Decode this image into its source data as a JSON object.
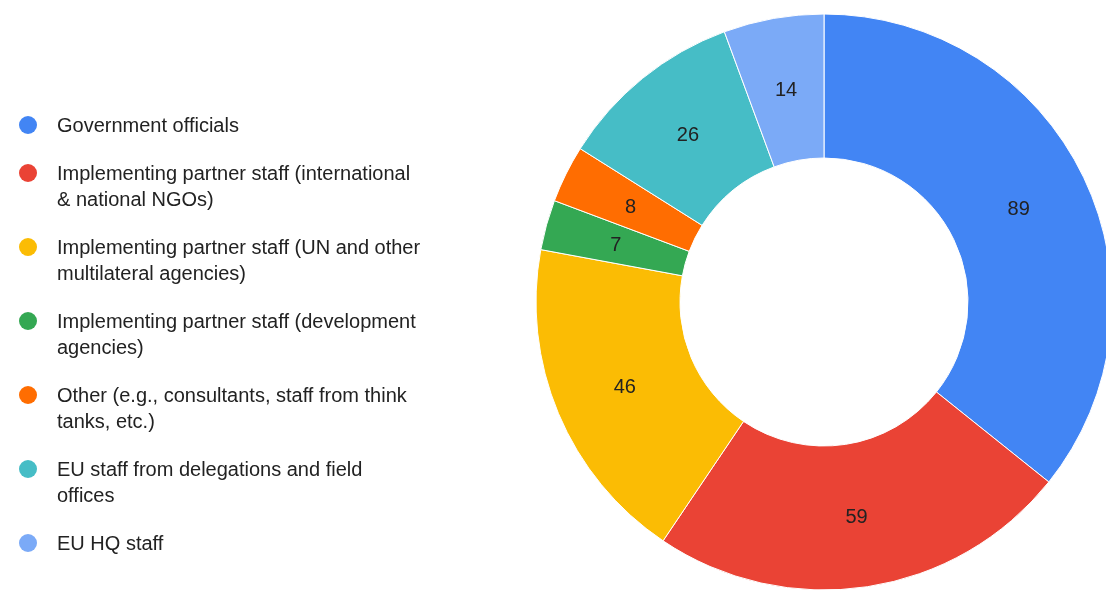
{
  "chart_data": {
    "type": "donut",
    "categories": [
      "Government officials",
      "Implementing partner staff (international & national NGOs)",
      "Implementing partner staff (UN and other multilateral agencies)",
      "Implementing partner staff (development agencies)",
      "Other (e.g., consultants, staff from think tanks, etc.)",
      "EU staff from delegations and field offices",
      "EU HQ staff"
    ],
    "values": [
      89,
      59,
      46,
      7,
      8,
      26,
      14
    ],
    "colors": [
      "#4285f4",
      "#ea4335",
      "#fbbc04",
      "#34a853",
      "#ff6d01",
      "#46bdc6",
      "#7baaf7"
    ],
    "data_labels": true,
    "legend": "left"
  }
}
